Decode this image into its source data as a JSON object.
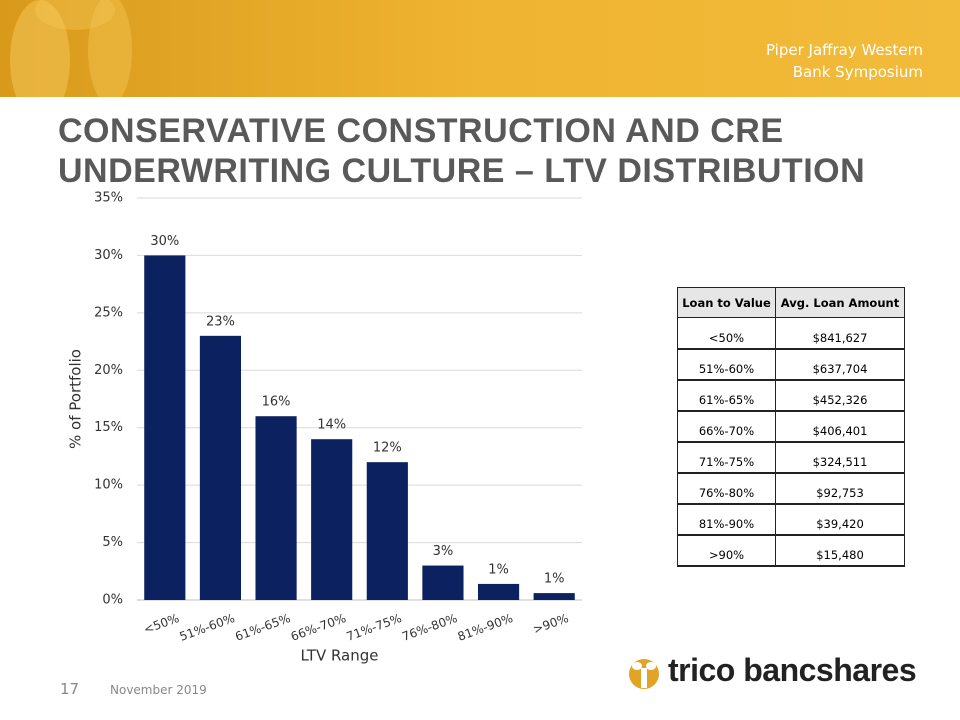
{
  "header": {
    "event": [
      "Piper Jaffray Western",
      "Bank Symposium"
    ]
  },
  "slide": {
    "title": [
      "CONSERVATIVE CONSTRUCTION AND CRE",
      "UNDERWRITING CULTURE – LTV DISTRIBUTION"
    ]
  },
  "chart_data": {
    "type": "bar",
    "categories": [
      "<50%",
      "51%-60%",
      "61%-65%",
      "66%-70%",
      "71%-75%",
      "76%-80%",
      "81%-90%",
      ">90%"
    ],
    "values": [
      30,
      23,
      16,
      14,
      12,
      3,
      1.4,
      0.6
    ],
    "value_labels": [
      "30%",
      "23%",
      "16%",
      "14%",
      "12%",
      "3%",
      "1%",
      "1%"
    ],
    "color": "#0c2260",
    "x_label": "LTV Range",
    "y_label": "% of Portfolio",
    "ylim": [
      0,
      35
    ],
    "yticks": [
      {
        "value": 0,
        "label": "0%"
      },
      {
        "value": 5,
        "label": "5%"
      },
      {
        "value": 10,
        "label": "10%"
      },
      {
        "value": 15,
        "label": "15%"
      },
      {
        "value": 20,
        "label": "20%"
      },
      {
        "value": 25,
        "label": "25%"
      },
      {
        "value": 30,
        "label": "30%"
      },
      {
        "value": 35,
        "label": "35%"
      }
    ],
    "grid": true
  },
  "table": {
    "headers": [
      "Loan to Value",
      "Avg. Loan Amount"
    ],
    "rows": [
      [
        "<50%",
        "$841,627"
      ],
      [
        "51%-60%",
        "$637,704"
      ],
      [
        "61%-65%",
        "$452,326"
      ],
      [
        "66%-70%",
        "$406,401"
      ],
      [
        "71%-75%",
        "$324,511"
      ],
      [
        "76%-80%",
        "$92,753"
      ],
      [
        "81%-90%",
        "$39,420"
      ],
      [
        ">90%",
        "$15,480"
      ]
    ]
  },
  "footer": {
    "page": "17",
    "date": "November 2019",
    "logo": "trico bancshares"
  }
}
